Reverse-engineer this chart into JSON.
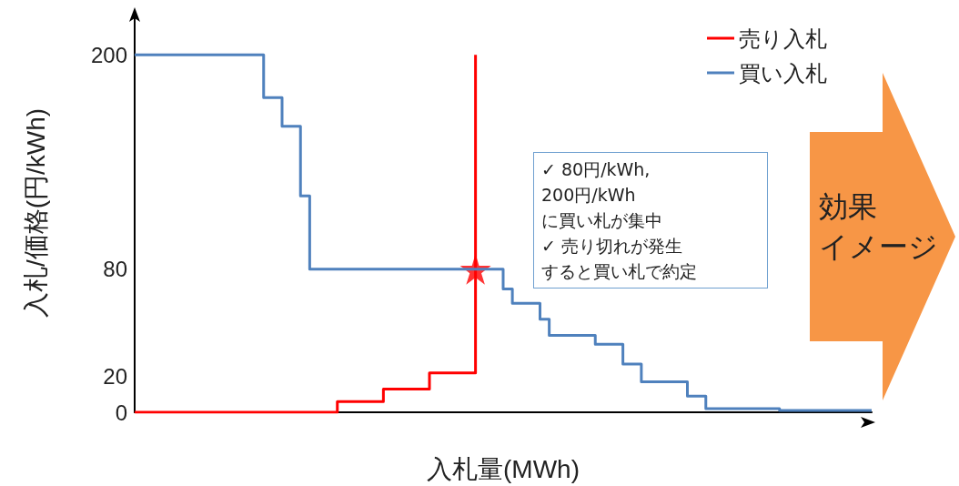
{
  "chart_data": {
    "type": "step",
    "xlabel": "入札量(MWh)",
    "ylabel": "入札/価格(円/kWh)",
    "categories": [
      null,
      null,
      null,
      null,
      null,
      null,
      null,
      null,
      null,
      null,
      null,
      null,
      null,
      null,
      null,
      null,
      null,
      null,
      null,
      null,
      null,
      null,
      null,
      null,
      null,
      null,
      null,
      null,
      null,
      null,
      null,
      null,
      null,
      null,
      null,
      null,
      null,
      null,
      null,
      null,
      null,
      null,
      null,
      null,
      null,
      null,
      null,
      null,
      null,
      null,
      null,
      null,
      null,
      null,
      null,
      null,
      null,
      null,
      null,
      null,
      null,
      null,
      null,
      null,
      null,
      null,
      null,
      null,
      null,
      null,
      null,
      null,
      null,
      null,
      null,
      null,
      null,
      null,
      null,
      null,
      null
    ],
    "series": [
      {
        "name": "売り入札",
        "color": "#ff0000",
        "values": [
          0,
          0,
          0,
          0,
          0,
          0,
          0,
          0,
          0,
          0,
          0,
          0,
          0,
          0,
          0,
          0,
          0,
          0,
          0,
          0,
          0,
          0,
          6,
          6,
          6,
          6,
          6,
          13,
          13,
          13,
          13,
          13,
          22,
          22,
          22,
          22,
          22,
          200,
          null,
          null,
          null,
          null,
          null,
          null,
          null,
          null,
          null,
          null,
          null,
          null,
          null,
          null,
          null,
          null,
          null,
          null,
          null,
          null,
          null,
          null,
          null,
          null,
          null,
          null,
          null,
          null,
          null,
          null,
          null,
          null,
          null,
          null,
          null,
          null,
          null,
          null,
          null,
          null,
          null,
          null,
          null
        ]
      },
      {
        "name": "買い入札",
        "color": "#4f81bd",
        "values": [
          200,
          200,
          200,
          200,
          200,
          200,
          200,
          200,
          200,
          200,
          200,
          200,
          200,
          200,
          176,
          176,
          160,
          160,
          121,
          80,
          80,
          80,
          80,
          80,
          80,
          80,
          80,
          80,
          80,
          80,
          80,
          80,
          80,
          80,
          80,
          80,
          80,
          80,
          80,
          80,
          69,
          61,
          61,
          61,
          52,
          43,
          43,
          43,
          43,
          43,
          38,
          38,
          38,
          27,
          27,
          17,
          17,
          17,
          17,
          17,
          9,
          9,
          2,
          2,
          2,
          2,
          2,
          2,
          2,
          2,
          1,
          1,
          1,
          1,
          1,
          1,
          1,
          1,
          1,
          1,
          1
        ]
      },
      {
        "type": "scatter",
        "marker": "star",
        "color": "#ff0000",
        "values": [
          null,
          null,
          null,
          null,
          null,
          null,
          null,
          null,
          null,
          null,
          null,
          null,
          null,
          null,
          null,
          null,
          null,
          null,
          null,
          null,
          null,
          null,
          null,
          null,
          null,
          null,
          null,
          null,
          null,
          null,
          null,
          null,
          null,
          null,
          null,
          null,
          null,
          80,
          null,
          null,
          null,
          null,
          null,
          null,
          null,
          null,
          null,
          null,
          null,
          null,
          null,
          null,
          null,
          null,
          null,
          null,
          null,
          null,
          null,
          null,
          null,
          null,
          null,
          null,
          null,
          null,
          null,
          null,
          null,
          null,
          null,
          null,
          null,
          null,
          null,
          null,
          null,
          null,
          null,
          null,
          null
        ]
      }
    ],
    "ylim": [
      0,
      223
    ],
    "yticks": [
      0,
      20,
      80,
      200
    ],
    "tick_labels": "y",
    "grid": false,
    "legend": "top right",
    "marker": "none",
    "annotations": [
      "✓ 80円/kWh,",
      "200円/kWh",
      "に買い札が集中",
      "✓ 売り切れが発生",
      "すると買い札で約定",
      "効果",
      "イメージ"
    ]
  }
}
